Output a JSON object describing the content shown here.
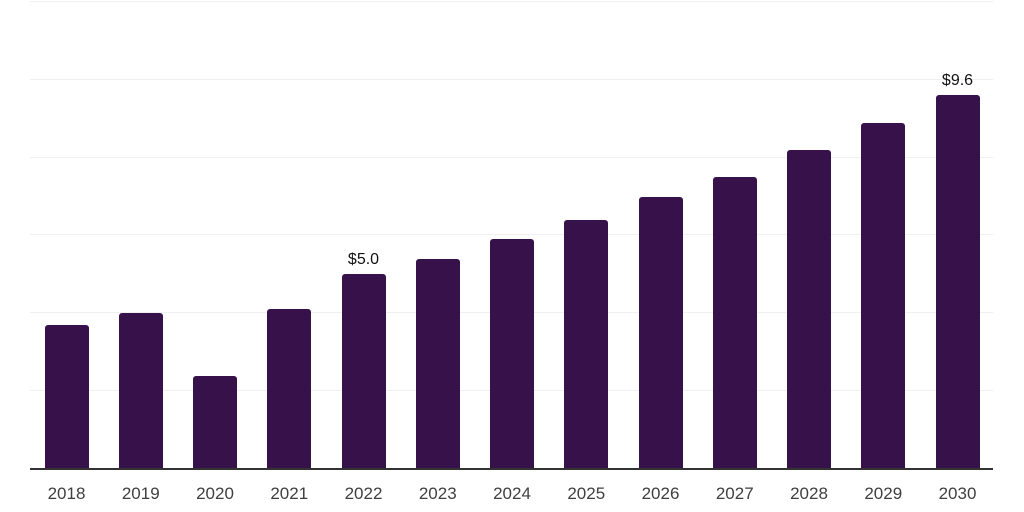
{
  "chart_data": {
    "type": "bar",
    "title": "",
    "xlabel": "",
    "ylabel": "",
    "categories": [
      "2018",
      "2019",
      "2020",
      "2021",
      "2022",
      "2023",
      "2024",
      "2025",
      "2026",
      "2027",
      "2028",
      "2029",
      "2030"
    ],
    "values": [
      3.7,
      4.0,
      2.4,
      4.1,
      5.0,
      5.4,
      5.9,
      6.4,
      7.0,
      7.5,
      8.2,
      8.9,
      9.6
    ],
    "data_labels": [
      "",
      "",
      "",
      "",
      "$5.0",
      "",
      "",
      "",
      "",
      "",
      "",
      "",
      "$9.6"
    ],
    "ylim": [
      0,
      12
    ],
    "gridline_step": 2,
    "grid": "horizontal-only",
    "legend": "none",
    "y_tick_labels_visible": false,
    "colors": {
      "bar": "#36114A",
      "gridline": "#F0F0F0",
      "axis_line": "#333333",
      "tick_label": "#3F3F3F",
      "data_label": "#111111",
      "background": "#FFFFFF"
    }
  }
}
